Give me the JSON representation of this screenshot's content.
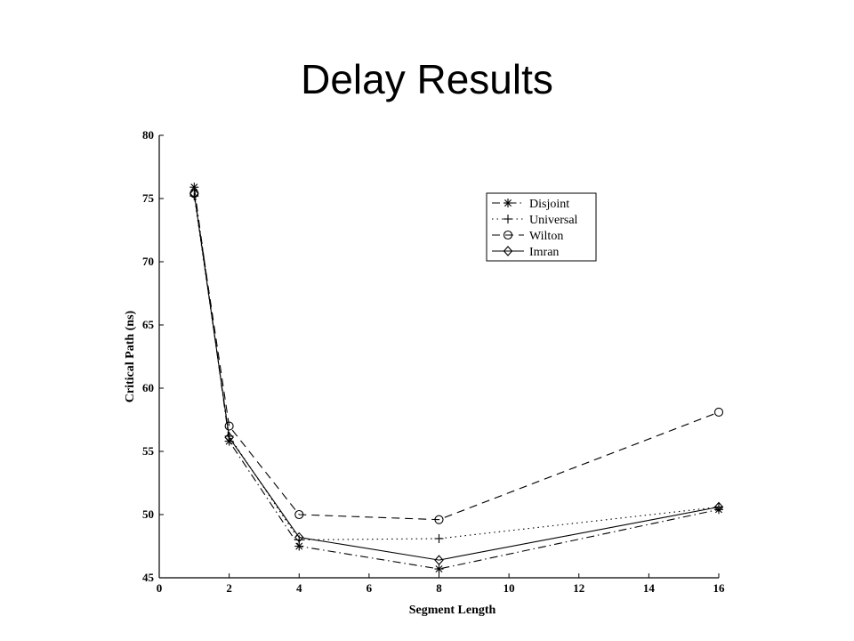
{
  "slide": {
    "title": "Delay Results"
  },
  "chart_data": {
    "type": "line",
    "title": "",
    "xlabel": "Segment Length",
    "ylabel": "Critical Path (ns)",
    "xlim": [
      0,
      16
    ],
    "ylim": [
      45,
      80
    ],
    "x_ticks": [
      0,
      2,
      4,
      6,
      8,
      10,
      12,
      14,
      16
    ],
    "y_ticks": [
      45,
      50,
      55,
      60,
      65,
      70,
      75,
      80
    ],
    "grid": false,
    "legend_position": "top-right",
    "x": [
      1,
      2,
      4,
      8,
      16
    ],
    "series": [
      {
        "name": "Disjoint",
        "marker": "star",
        "line_style": "dashdot",
        "values": [
          75.9,
          55.8,
          47.5,
          45.7,
          50.4
        ]
      },
      {
        "name": "Universal",
        "marker": "plus",
        "line_style": "dotted",
        "values": [
          75.2,
          56.2,
          48.0,
          48.1,
          50.6
        ]
      },
      {
        "name": "Wilton",
        "marker": "circle",
        "line_style": "dashed",
        "values": [
          75.4,
          57.0,
          50.0,
          49.6,
          58.1
        ]
      },
      {
        "name": "Imran",
        "marker": "diamond",
        "line_style": "solid",
        "values": [
          75.4,
          56.1,
          48.2,
          46.4,
          50.6
        ]
      }
    ]
  }
}
